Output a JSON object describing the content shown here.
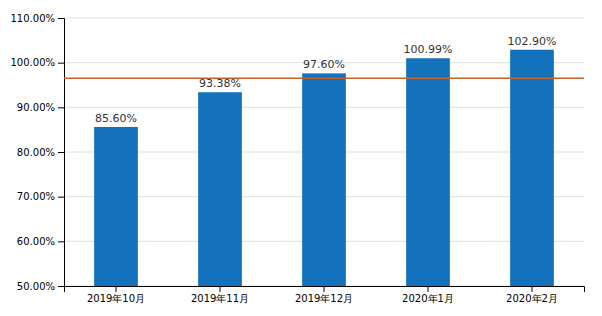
{
  "chart_data": {
    "type": "bar",
    "categories": [
      "2019年10月",
      "2019年11月",
      "2019年12月",
      "2020年1月",
      "2020年2月"
    ],
    "values": [
      85.6,
      93.38,
      97.6,
      100.99,
      102.9
    ],
    "value_labels": [
      "85.60%",
      "93.38%",
      "97.60%",
      "100.99%",
      "102.90%"
    ],
    "data_labels": true,
    "color": "#1471BB",
    "reference_line": {
      "value": 96.5,
      "color": "#C0622A"
    },
    "ylim": [
      50,
      110
    ],
    "yticks": [
      {
        "value": 50,
        "label": "50.00%"
      },
      {
        "value": 60,
        "label": "60.00%"
      },
      {
        "value": 70,
        "label": "70.00%"
      },
      {
        "value": 80,
        "label": "80.00%"
      },
      {
        "value": 90,
        "label": "90.00%"
      },
      {
        "value": 100,
        "label": "100.00%"
      },
      {
        "value": 110,
        "label": "110.00%"
      }
    ],
    "grid": true
  }
}
